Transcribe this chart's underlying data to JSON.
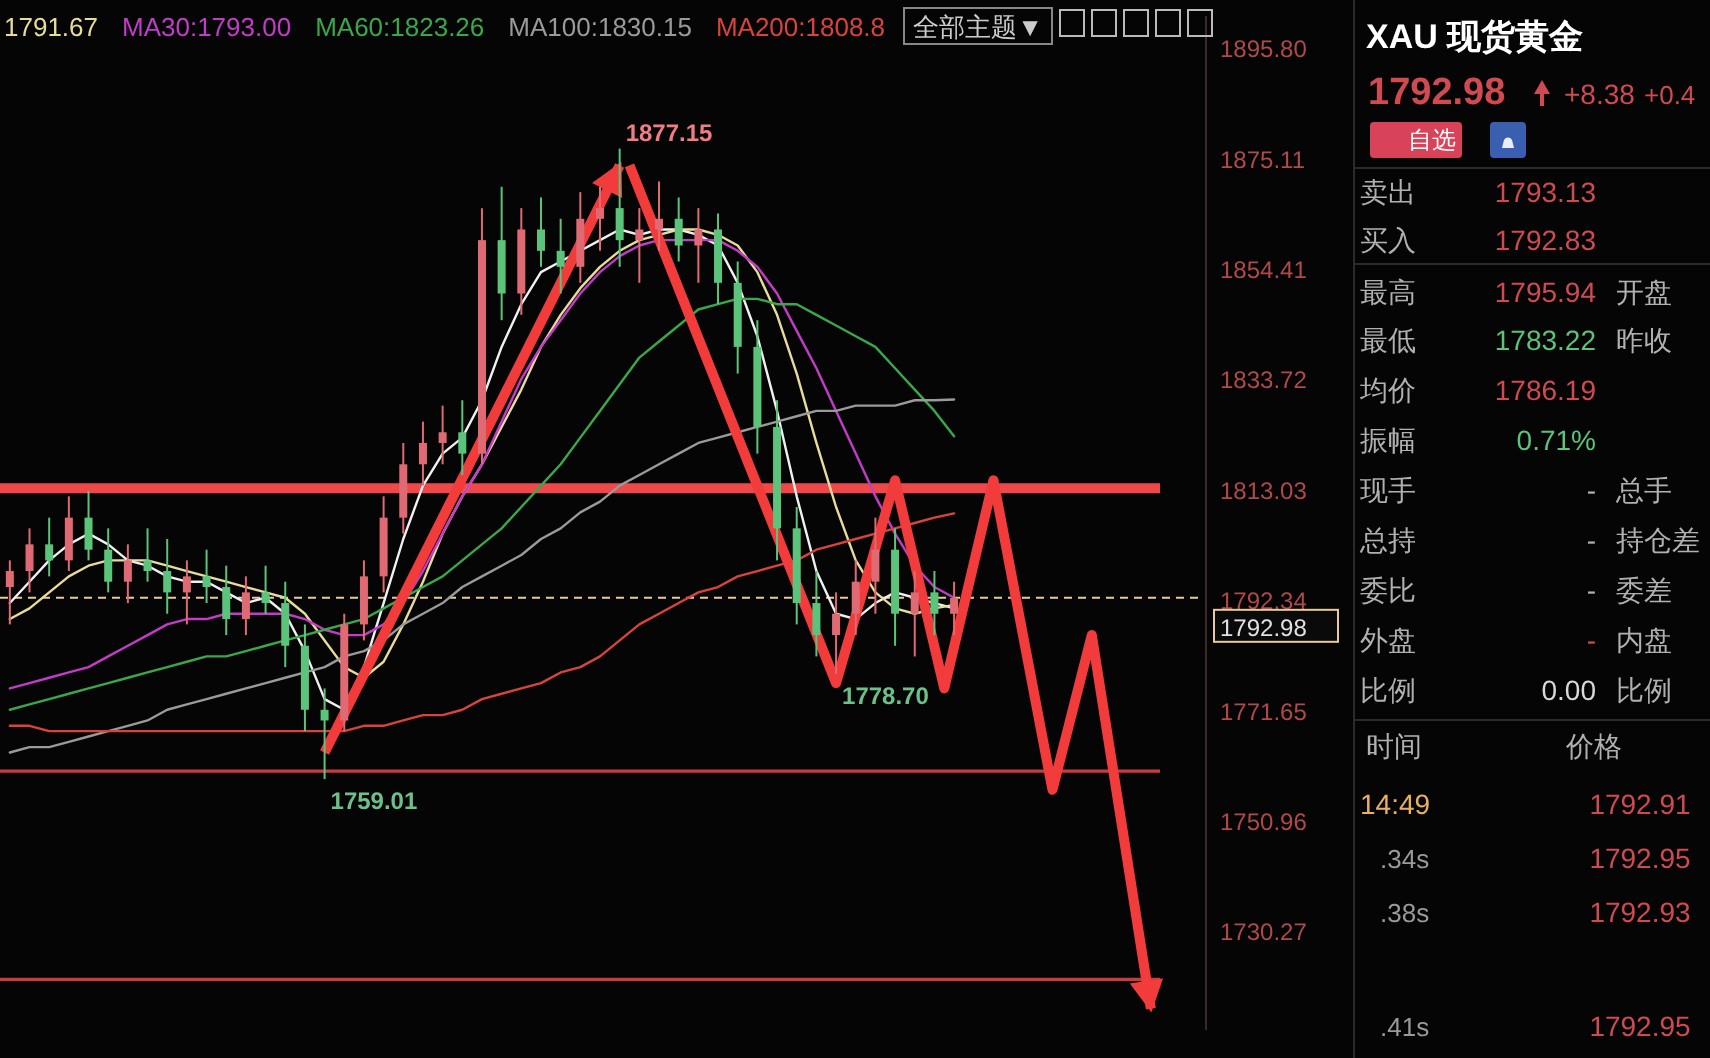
{
  "chart_data": [
    {
      "type": "candlestick",
      "categories": [
        null,
        null,
        null,
        null,
        null,
        null,
        null,
        null,
        null,
        null,
        null,
        null,
        null,
        null,
        null,
        null,
        null,
        null,
        null,
        null,
        null,
        null,
        null,
        null,
        null,
        null,
        null,
        null,
        null,
        null,
        null,
        null,
        null,
        null,
        null,
        null,
        null,
        null,
        null,
        null,
        null,
        null,
        null,
        null,
        null,
        null,
        null,
        null,
        null
      ],
      "ohlc": [
        [
          1795,
          1800,
          1788,
          1798
        ],
        [
          1798,
          1806,
          1794,
          1803
        ],
        [
          1803,
          1808,
          1797,
          1800
        ],
        [
          1800,
          1812,
          1798,
          1808
        ],
        [
          1808,
          1813,
          1800,
          1802
        ],
        [
          1802,
          1806,
          1794,
          1796
        ],
        [
          1796,
          1803,
          1792,
          1800
        ],
        [
          1800,
          1806,
          1796,
          1798
        ],
        [
          1798,
          1804,
          1790,
          1794
        ],
        [
          1794,
          1800,
          1788,
          1797
        ],
        [
          1797,
          1802,
          1792,
          1795
        ],
        [
          1795,
          1799,
          1786,
          1789
        ],
        [
          1789,
          1797,
          1786,
          1794
        ],
        [
          1794,
          1799,
          1790,
          1792
        ],
        [
          1792,
          1796,
          1780,
          1784
        ],
        [
          1784,
          1788,
          1768,
          1772
        ],
        [
          1772,
          1776,
          1759.01,
          1770
        ],
        [
          1770,
          1790,
          1768,
          1788
        ],
        [
          1788,
          1800,
          1785,
          1797
        ],
        [
          1797,
          1812,
          1794,
          1808
        ],
        [
          1808,
          1822,
          1805,
          1818
        ],
        [
          1818,
          1826,
          1814,
          1822
        ],
        [
          1822,
          1829,
          1818,
          1824
        ],
        [
          1824,
          1830,
          1816,
          1820
        ],
        [
          1820,
          1866,
          1818,
          1860
        ],
        [
          1860,
          1870,
          1845,
          1850
        ],
        [
          1850,
          1866,
          1846,
          1862
        ],
        [
          1862,
          1868,
          1855,
          1858
        ],
        [
          1858,
          1864,
          1850,
          1855
        ],
        [
          1855,
          1869,
          1852,
          1864
        ],
        [
          1864,
          1870,
          1858,
          1866
        ],
        [
          1866,
          1877.15,
          1855,
          1860
        ],
        [
          1860,
          1866,
          1852,
          1862
        ],
        [
          1862,
          1871,
          1858,
          1864
        ],
        [
          1864,
          1868,
          1856,
          1859
        ],
        [
          1859,
          1866,
          1852,
          1862
        ],
        [
          1862,
          1865,
          1848,
          1852
        ],
        [
          1852,
          1856,
          1835,
          1840
        ],
        [
          1840,
          1845,
          1820,
          1825
        ],
        [
          1825,
          1830,
          1800,
          1806
        ],
        [
          1806,
          1810,
          1788,
          1792
        ],
        [
          1792,
          1798,
          1782,
          1786
        ],
        [
          1786,
          1794,
          1778.7,
          1790
        ],
        [
          1790,
          1800,
          1786,
          1796
        ],
        [
          1796,
          1808,
          1790,
          1802
        ],
        [
          1802,
          1806,
          1784,
          1790
        ],
        [
          1790,
          1798,
          1782,
          1794
        ],
        [
          1794,
          1798,
          1786,
          1790
        ],
        [
          1790,
          1796,
          1786,
          1792.98
        ]
      ],
      "colors": [
        "#e06a74",
        "#e06a74",
        "#5cc47a",
        "#e06a74",
        "#5cc47a",
        "#5cc47a",
        "#e06a74",
        "#5cc47a",
        "#5cc47a",
        "#e06a74",
        "#5cc47a",
        "#5cc47a",
        "#e06a74",
        "#5cc47a",
        "#5cc47a",
        "#5cc47a",
        "#5cc47a",
        "#e06a74",
        "#e06a74",
        "#e06a74",
        "#e06a74",
        "#e06a74",
        "#e06a74",
        "#5cc47a",
        "#e06a74",
        "#5cc47a",
        "#e06a74",
        "#5cc47a",
        "#5cc47a",
        "#e06a74",
        "#e06a74",
        "#5cc47a",
        "#e06a74",
        "#e06a74",
        "#5cc47a",
        "#e06a74",
        "#5cc47a",
        "#5cc47a",
        "#5cc47a",
        "#5cc47a",
        "#5cc47a",
        "#5cc47a",
        "#e06a74",
        "#e06a74",
        "#e06a74",
        "#5cc47a",
        "#e06a74",
        "#5cc47a",
        "#e06a74"
      ],
      "series": [
        {
          "type": "line",
          "color": "#f0f0f0",
          "values": [
            1792,
            1796,
            1800,
            1803,
            1805,
            1803,
            1800,
            1799,
            1797,
            1796,
            1796,
            1794,
            1792,
            1793,
            1790,
            1783,
            1774,
            1772,
            1780,
            1792,
            1804,
            1814,
            1820,
            1823,
            1830,
            1840,
            1848,
            1854,
            1856,
            1858,
            1860,
            1862,
            1861,
            1862,
            1862,
            1861,
            1859,
            1852,
            1842,
            1828,
            1812,
            1798,
            1790,
            1789,
            1792,
            1794,
            1793,
            1792,
            1791
          ]
        },
        {
          "type": "line",
          "name": "1791.67",
          "color": "#e8dc9a",
          "values": [
            1789,
            1791,
            1794,
            1797,
            1799,
            1800,
            1800,
            1800,
            1799,
            1798,
            1797,
            1796,
            1795,
            1794,
            1793,
            1790,
            1785,
            1780,
            1778,
            1781,
            1788,
            1796,
            1805,
            1812,
            1818,
            1825,
            1832,
            1840,
            1846,
            1851,
            1855,
            1858,
            1860,
            1861,
            1862,
            1862,
            1861,
            1859,
            1854,
            1846,
            1835,
            1822,
            1810,
            1800,
            1794,
            1791,
            1790,
            1791,
            1791.67
          ]
        },
        {
          "type": "line",
          "name": "MA30:1793.00",
          "color": "#c23cc8",
          "values": [
            1776,
            1777,
            1778,
            1779,
            1780,
            1782,
            1784,
            1786,
            1788,
            1789,
            1789,
            1790,
            1790,
            1790,
            1790,
            1789,
            1787,
            1786,
            1786,
            1788,
            1792,
            1798,
            1805,
            1812,
            1818,
            1826,
            1834,
            1840,
            1845,
            1850,
            1854,
            1857,
            1859,
            1860,
            1860,
            1860,
            1860,
            1858,
            1855,
            1850,
            1843,
            1836,
            1828,
            1820,
            1812,
            1805,
            1799,
            1795,
            1793.0
          ]
        },
        {
          "type": "line",
          "name": "MA60:1823.26",
          "color": "#3aa84a",
          "values": [
            1772,
            1773,
            1774,
            1775,
            1776,
            1777,
            1778,
            1779,
            1780,
            1781,
            1782,
            1782,
            1783,
            1784,
            1785,
            1786,
            1787,
            1788,
            1789,
            1791,
            1793,
            1795,
            1797,
            1800,
            1803,
            1806,
            1810,
            1814,
            1818,
            1823,
            1828,
            1833,
            1838,
            1841,
            1844,
            1847,
            1848,
            1849,
            1849,
            1848,
            1848,
            1846,
            1844,
            1842,
            1840,
            1836,
            1832,
            1828,
            1823.26
          ]
        },
        {
          "type": "line",
          "name": "MA100:1830.15",
          "color": "#9a9a9a",
          "values": [
            1764,
            1765,
            1765,
            1766,
            1767,
            1768,
            1769,
            1770,
            1772,
            1773,
            1774,
            1775,
            1776,
            1777,
            1778,
            1779,
            1780,
            1782,
            1783,
            1785,
            1788,
            1790,
            1792,
            1795,
            1797,
            1799,
            1801,
            1804,
            1806,
            1809,
            1811,
            1814,
            1816,
            1818,
            1820,
            1822,
            1823,
            1824,
            1825,
            1826,
            1827,
            1828,
            1828,
            1829,
            1829,
            1829,
            1830,
            1830,
            1830.15
          ]
        },
        {
          "type": "line",
          "name": "MA200:1808.8",
          "color": "#d8443c",
          "values": [
            1769,
            1769,
            1768,
            1768,
            1768,
            1768,
            1768,
            1768,
            1768,
            1768,
            1768,
            1768,
            1768,
            1768,
            1768,
            1768,
            1768,
            1768,
            1769,
            1769,
            1770,
            1771,
            1771,
            1772,
            1774,
            1775,
            1776,
            1777,
            1779,
            1780,
            1782,
            1785,
            1788,
            1790,
            1792,
            1794,
            1795,
            1797,
            1798,
            1799,
            1800,
            1802,
            1803,
            1804,
            1805,
            1806,
            1807,
            1808,
            1808.8
          ]
        }
      ],
      "ylim": [
        1712,
        1902
      ],
      "yticks": [
        {
          "value": 1895.8,
          "label": "1895.80"
        },
        {
          "value": 1875.11,
          "label": "1875.11"
        },
        {
          "value": 1854.41,
          "label": "1854.41"
        },
        {
          "value": 1833.72,
          "label": "1833.72"
        },
        {
          "value": 1813.03,
          "label": "1813.03"
        },
        {
          "value": 1792.34,
          "label": "1792.34"
        },
        {
          "value": 1771.65,
          "label": "1771.65"
        },
        {
          "value": 1750.96,
          "label": "1750.96"
        },
        {
          "value": 1730.27,
          "label": "1730.27"
        }
      ],
      "ref_lines": [
        {
          "axis": "y",
          "value": 1813.5,
          "color": "#f04848"
        },
        {
          "axis": "y",
          "value": 1760.5,
          "color": "#c83c3c"
        },
        {
          "axis": "y",
          "value": 1721.5,
          "color": "#c83c3c"
        },
        {
          "axis": "y",
          "value": 1792.98,
          "label": "1792.98",
          "color": "#e8c9a0",
          "line_style": "dashed"
        }
      ],
      "annotations": [
        "1877.15",
        {
          "text": "1759.01",
          "y": 1759.01
        },
        "1778.70",
        "全部主题▼"
      ],
      "legend": "top",
      "tick_labels": "y"
    },
    {
      "type": "other",
      "title": "XAU 现货黄金",
      "annotations": [
        "1792.98",
        "+8.38",
        "+0.4",
        "自选",
        "卖出",
        "1793.13",
        "买入",
        "1792.83",
        "最高",
        "1795.94",
        "开盘",
        "最低",
        "1783.22",
        "昨收",
        "均价",
        "1786.19",
        "振幅",
        "0.71%",
        "现手",
        "-",
        "总手",
        "总持",
        "-",
        "持仓差",
        "委比",
        "-",
        "委差",
        "外盘",
        "-",
        "内盘",
        "比例",
        "0.00",
        "比例",
        "时间",
        "价格",
        "14:49",
        "1792.91",
        ".34s",
        "1792.95",
        ".38s",
        "1792.93",
        ".41s",
        "1792.95"
      ]
    }
  ]
}
